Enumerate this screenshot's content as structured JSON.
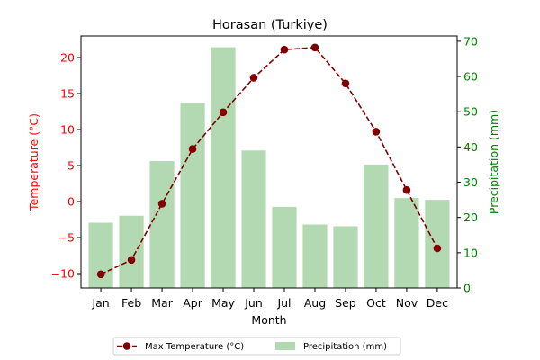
{
  "chart_data": {
    "type": "bar+line",
    "title": "Horasan (Turkiye)",
    "xlabel": "Month",
    "ylabel_left": "Temperature (°C)",
    "ylabel_right": "Precipitation (mm)",
    "categories": [
      "Jan",
      "Feb",
      "Mar",
      "Apr",
      "May",
      "Jun",
      "Jul",
      "Aug",
      "Sep",
      "Oct",
      "Nov",
      "Dec"
    ],
    "y_left": {
      "min": -12,
      "max": 23,
      "ticks": [
        -10,
        -5,
        0,
        5,
        10,
        15,
        20
      ],
      "color": "#ff0000"
    },
    "y_right": {
      "min": 0,
      "max": 71.5,
      "ticks": [
        0,
        10,
        20,
        30,
        40,
        50,
        60,
        70
      ],
      "color": "#008000"
    },
    "series": [
      {
        "name": "Max Temperature (°C)",
        "kind": "line",
        "axis": "left",
        "color": "#800000",
        "values": [
          -10.1,
          -8.1,
          -0.3,
          7.3,
          12.4,
          17.2,
          21.1,
          21.4,
          16.4,
          9.7,
          1.6,
          -6.5
        ]
      },
      {
        "name": "Precipitation (mm)",
        "kind": "bar",
        "axis": "right",
        "color": "#b3d9b3",
        "values": [
          18.5,
          20.5,
          36,
          52.5,
          68.3,
          39,
          23,
          18,
          17.5,
          35,
          25.5,
          25
        ]
      }
    ],
    "legend": "bottom-center"
  }
}
